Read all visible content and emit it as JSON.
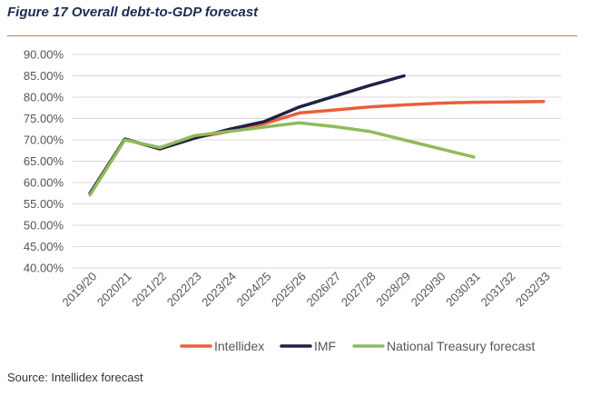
{
  "figure": {
    "title": "Figure 17 Overall debt-to-GDP forecast",
    "source": "Source: Intellidex forecast"
  },
  "colors": {
    "rule": "#e07a3c",
    "grid": "#d9d9d9"
  },
  "chart_data": {
    "type": "line",
    "title": "",
    "xlabel": "",
    "ylabel": "",
    "categories": [
      "2019/20",
      "2020/21",
      "2021/22",
      "2022/23",
      "2023/24",
      "2024/25",
      "2025/26",
      "2026/27",
      "2027/28",
      "2028/29",
      "2029/30",
      "2030/31",
      "2031/32",
      "2032/33"
    ],
    "y_ticks": [
      "40.00%",
      "45.00%",
      "50.00%",
      "55.00%",
      "60.00%",
      "65.00%",
      "70.00%",
      "75.00%",
      "80.00%",
      "85.00%",
      "90.00%"
    ],
    "ylim": [
      40,
      90
    ],
    "grid": true,
    "legend_position": "bottom",
    "series": [
      {
        "name": "Intellidex",
        "color": "#e8603c",
        "values": [
          57.5,
          70.2,
          67.9,
          70.5,
          72.0,
          73.8,
          76.3,
          77.0,
          77.7,
          78.2,
          78.6,
          78.8,
          78.9,
          79.0
        ]
      },
      {
        "name": "IMF",
        "color": "#1f2147",
        "values": [
          57.5,
          70.2,
          67.9,
          70.4,
          72.5,
          74.3,
          77.7,
          80.2,
          82.7,
          85.0,
          null,
          null,
          null,
          null
        ]
      },
      {
        "name": "National Treasury forecast",
        "color": "#8fbb5b",
        "values": [
          57.1,
          70.0,
          68.2,
          71.0,
          72.0,
          73.0,
          74.0,
          73.1,
          72.0,
          70.0,
          68.0,
          66.0,
          null,
          null
        ]
      }
    ]
  }
}
